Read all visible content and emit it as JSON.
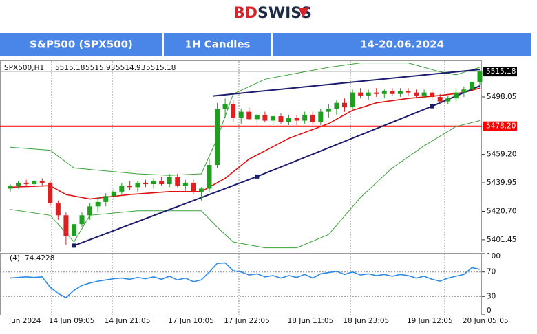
{
  "header": {
    "logo_left": "BD",
    "logo_right": "SWISS",
    "cells": [
      "S&P500 (SPX500)",
      "1H Candles",
      "14-20.06.2024"
    ]
  },
  "chart_data": [
    {
      "type": "candlestick",
      "info": {
        "symbol": "SPX500,H1",
        "ohlc": [
          5515.18,
          5515.93,
          5514.93,
          5515.18
        ]
      },
      "categories": [
        "Jun 2024",
        null,
        null,
        null,
        null,
        "14 Jun 09:05",
        null,
        null,
        null,
        null,
        null,
        null,
        "14 Jun 21:05",
        null,
        null,
        null,
        null,
        null,
        null,
        null,
        "17 Jun 10:05",
        null,
        null,
        null,
        null,
        null,
        null,
        "17 Jun 22:05",
        null,
        null,
        null,
        null,
        null,
        null,
        null,
        "18 Jun 11:05",
        null,
        null,
        null,
        null,
        null,
        null,
        "18 Jun 23:05",
        null,
        null,
        null,
        null,
        null,
        null,
        null,
        "19 Jun 12:05",
        null,
        null,
        null,
        null,
        null,
        null,
        "20 Jun 05:05",
        null,
        null
      ],
      "open": [
        5436,
        5438,
        5440,
        5439,
        5441,
        5440,
        5426,
        5418,
        5404,
        5412,
        5418,
        5424,
        5427,
        5431,
        5434,
        5438,
        5437,
        5440,
        5439,
        5441,
        5439,
        5444,
        5438,
        5440,
        5434,
        5436,
        5452,
        5490,
        5493,
        5484,
        5488,
        5483,
        5486,
        5482,
        5485,
        5481,
        5484,
        5482,
        5486,
        5481,
        5488,
        5490,
        5494,
        5491,
        5501,
        5499,
        5501,
        5500,
        5502,
        5500,
        5502,
        5501,
        5499,
        5501,
        5498,
        5495,
        5497,
        5501,
        5503,
        5508
      ],
      "high": [
        5439,
        5441,
        5442,
        5442,
        5443,
        5441,
        5428,
        5420,
        5414,
        5420,
        5426,
        5430,
        5433,
        5436,
        5440,
        5441,
        5441,
        5442,
        5443,
        5444,
        5446,
        5446,
        5442,
        5442,
        5437,
        5456,
        5494,
        5497,
        5496,
        5490,
        5491,
        5487,
        5488,
        5486,
        5487,
        5486,
        5486,
        5488,
        5488,
        5490,
        5493,
        5496,
        5497,
        5503,
        5504,
        5503,
        5504,
        5503,
        5504,
        5504,
        5504,
        5503,
        5503,
        5503,
        5500,
        5499,
        5503,
        5505,
        5510,
        5515.93
      ],
      "low": [
        5434,
        5436,
        5437,
        5437,
        5438,
        5424,
        5415,
        5398,
        5402,
        5410,
        5415,
        5420,
        5424,
        5428,
        5432,
        5435,
        5434,
        5437,
        5436,
        5438,
        5437,
        5437,
        5434,
        5432,
        5428,
        5434,
        5450,
        5484,
        5481,
        5480,
        5482,
        5480,
        5481,
        5479,
        5480,
        5479,
        5479,
        5480,
        5480,
        5479,
        5484,
        5486,
        5488,
        5490,
        5497,
        5496,
        5498,
        5497,
        5499,
        5498,
        5499,
        5497,
        5497,
        5496,
        5493,
        5493,
        5495,
        5498,
        5501,
        5506
      ],
      "close": [
        5438,
        5440,
        5439,
        5441,
        5440,
        5426,
        5418,
        5404,
        5412,
        5418,
        5424,
        5427,
        5431,
        5434,
        5438,
        5437,
        5440,
        5439,
        5441,
        5439,
        5444,
        5438,
        5440,
        5434,
        5436,
        5452,
        5490,
        5493,
        5484,
        5488,
        5483,
        5486,
        5482,
        5485,
        5481,
        5484,
        5482,
        5486,
        5481,
        5488,
        5490,
        5494,
        5491,
        5501,
        5499,
        5501,
        5500,
        5502,
        5500,
        5502,
        5501,
        5499,
        5501,
        5498,
        5495,
        5497,
        5501,
        5503,
        5508,
        5515.18
      ],
      "up_color": "#1f9e1f",
      "down_color": "#e02020",
      "ylim": [
        5393.5,
        5522.2
      ],
      "yticks": [
        {
          "value": 5401.45,
          "label": "5401.45"
        },
        {
          "value": 5420.7,
          "label": "5420.70"
        },
        5439.95,
        {
          "value": 5459.2,
          "label": "5459.20"
        },
        5498.05
      ],
      "lines": [
        {
          "color": "#e01010",
          "width": 1.6,
          "x": [
            0,
            5,
            7,
            10,
            15,
            20,
            24,
            27,
            30,
            35,
            40,
            43,
            46,
            50,
            54,
            57,
            59
          ],
          "values": [
            5437,
            5438,
            5432,
            5429,
            5432,
            5434,
            5434,
            5443,
            5456,
            5470,
            5480,
            5489,
            5494,
            5497,
            5499,
            5501,
            5504
          ]
        },
        {
          "color": "#3aa03a",
          "width": 1,
          "x": [
            0,
            5,
            8,
            12,
            16,
            20,
            24,
            26,
            28,
            32,
            36,
            40,
            44,
            46,
            50,
            54,
            56,
            59
          ],
          "values": [
            5464,
            5462,
            5450,
            5448,
            5446,
            5445,
            5446,
            5470,
            5500,
            5510,
            5514,
            5518,
            5521,
            5521,
            5521,
            5515,
            5513,
            5518
          ]
        },
        {
          "color": "#3aa03a",
          "width": 1,
          "x": [
            0,
            5,
            8,
            10,
            16,
            20,
            24,
            26,
            28,
            32,
            36,
            40,
            44,
            48,
            52,
            56,
            59
          ],
          "values": [
            5422,
            5418,
            5400,
            5418,
            5421,
            5421,
            5421,
            5410,
            5400,
            5396,
            5396,
            5405,
            5430,
            5450,
            5465,
            5478,
            5482
          ]
        },
        {
          "color": "#1c1c6e",
          "width": 2,
          "markers": true,
          "x": [
            8,
            31,
            53,
            59
          ],
          "values": [
            5397.5,
            5444.2,
            5491.7,
            5505.5
          ]
        },
        {
          "color": "#1c1c6e",
          "width": 2,
          "x": [
            25.5,
            59
          ],
          "values": [
            5498.7,
            5516.6
          ]
        }
      ],
      "level": {
        "value": 5478.2,
        "label": "5478.20",
        "color": "#ff0000"
      },
      "price": {
        "value": 5515.18,
        "label": "5515.18"
      }
    },
    {
      "type": "line",
      "label": "(4)",
      "color": "#2b8ae6",
      "values": [
        60,
        61,
        62,
        61,
        62,
        45,
        35,
        28,
        40,
        48,
        52,
        55,
        57,
        59,
        60,
        58,
        61,
        59,
        62,
        58,
        63,
        57,
        60,
        54,
        57,
        70,
        84,
        85,
        72,
        70,
        65,
        67,
        62,
        64,
        60,
        64,
        61,
        66,
        60,
        67,
        69,
        71,
        66,
        70,
        65,
        67,
        64,
        66,
        63,
        66,
        64,
        60,
        63,
        58,
        55,
        60,
        63,
        66,
        77,
        74.4228
      ],
      "ylim": [
        0,
        100
      ],
      "yticks": [
        100,
        70,
        30,
        0
      ]
    }
  ]
}
